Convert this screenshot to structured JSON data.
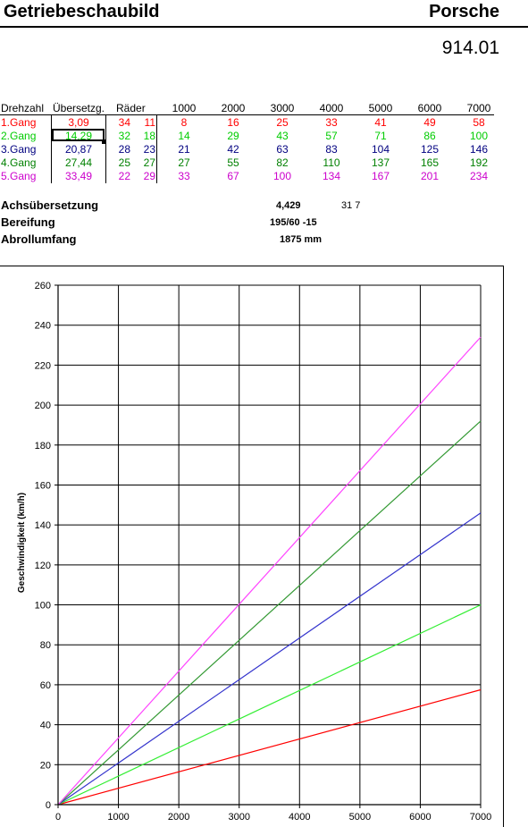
{
  "header": {
    "title": "Getriebeschaubild",
    "brand": "Porsche",
    "model": "914.01"
  },
  "table": {
    "headers": {
      "rpm": "Drehzahl",
      "ratio": "Übersetzg.",
      "gears": "Räder"
    },
    "rpm_columns": [
      "1000",
      "2000",
      "3000",
      "4000",
      "5000",
      "6000",
      "7000"
    ],
    "rows": [
      {
        "label": "1.Gang",
        "ratio": "3,09",
        "z1": "34",
        "z2": "11",
        "color": "#ff0000",
        "speeds": [
          "8",
          "16",
          "25",
          "33",
          "41",
          "49",
          "58"
        ]
      },
      {
        "label": "2.Gang",
        "ratio": "14,29",
        "z1": "32",
        "z2": "18",
        "color": "#00cc00",
        "speeds": [
          "14",
          "29",
          "43",
          "57",
          "71",
          "86",
          "100"
        ]
      },
      {
        "label": "3.Gang",
        "ratio": "20,87",
        "z1": "28",
        "z2": "23",
        "color": "#000080",
        "speeds": [
          "21",
          "42",
          "63",
          "83",
          "104",
          "125",
          "146"
        ]
      },
      {
        "label": "4.Gang",
        "ratio": "27,44",
        "z1": "25",
        "z2": "27",
        "color": "#008000",
        "speeds": [
          "27",
          "55",
          "82",
          "110",
          "137",
          "165",
          "192"
        ]
      },
      {
        "label": "5.Gang",
        "ratio": "33,49",
        "z1": "22",
        "z2": "29",
        "color": "#cc00cc",
        "speeds": [
          "33",
          "67",
          "100",
          "134",
          "167",
          "201",
          "234"
        ]
      }
    ]
  },
  "info": {
    "axle_label": "Achsübersetzung",
    "axle_value": "4,429",
    "axle_teeth": "31  7",
    "tyre_label": "Bereifung",
    "tyre_value": "195/60 -15",
    "circ_label": "Abrollumfang",
    "circ_value": "1875 mm"
  },
  "chart_data": {
    "type": "line",
    "title": "",
    "xlabel": "",
    "ylabel": "Geschwindigkeit (km/h)",
    "xlim": [
      0,
      7000
    ],
    "ylim": [
      0,
      260
    ],
    "xticks": [
      0,
      1000,
      2000,
      3000,
      4000,
      5000,
      6000,
      7000
    ],
    "yticks": [
      0,
      20,
      40,
      60,
      80,
      100,
      120,
      140,
      160,
      180,
      200,
      220,
      240,
      260
    ],
    "grid": true,
    "legend": "none",
    "series": [
      {
        "color": "#ff0000",
        "x": [
          0,
          7000
        ],
        "y": [
          0,
          57.5
        ]
      },
      {
        "color": "#33ee33",
        "x": [
          0,
          7000
        ],
        "y": [
          0,
          100
        ]
      },
      {
        "color": "#3333cc",
        "x": [
          0,
          7000
        ],
        "y": [
          0,
          146
        ]
      },
      {
        "color": "#339933",
        "x": [
          0,
          7000
        ],
        "y": [
          0,
          192
        ]
      },
      {
        "color": "#ff44ff",
        "x": [
          0,
          7000
        ],
        "y": [
          0,
          234
        ]
      }
    ]
  }
}
